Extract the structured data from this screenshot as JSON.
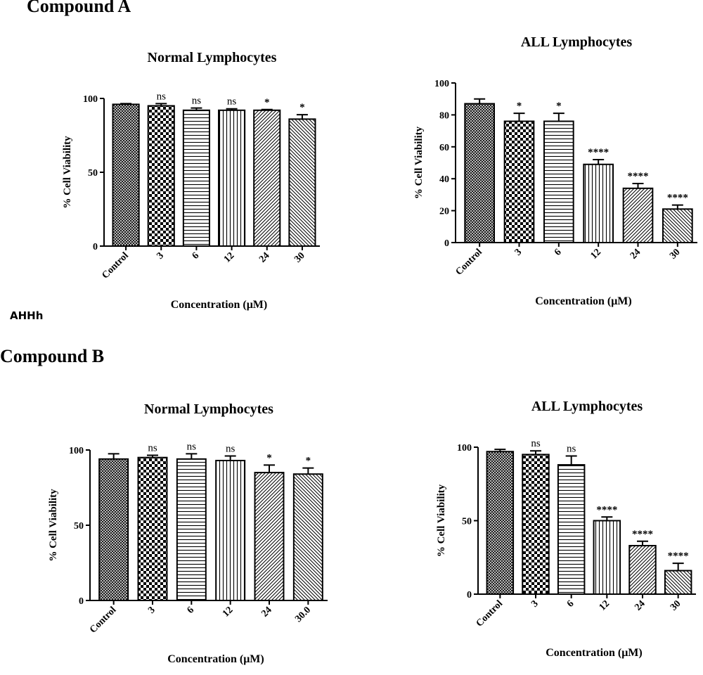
{
  "page": {
    "compound_a_label": "Compound A",
    "compound_b_label": "Compound B",
    "stray_label": "AHHh"
  },
  "chart_data": [
    {
      "type": "bar",
      "title": "Normal Lymphocytes",
      "xlabel": "Concentration (μM)",
      "ylabel": "% Cell Viability",
      "categories": [
        "Control",
        "3",
        "6",
        "12",
        "24",
        "30"
      ],
      "values": [
        96,
        95,
        92,
        92,
        92,
        86
      ],
      "errors": [
        0.5,
        1.5,
        1.5,
        1,
        0.5,
        3
      ],
      "significance": [
        "",
        "ns",
        "ns",
        "ns",
        "*",
        "*"
      ],
      "ylim": [
        0,
        100
      ],
      "yticks": [
        0,
        50,
        100
      ],
      "patterns": [
        "crosshatch",
        "checker",
        "horizontal",
        "vertical",
        "diag-right",
        "diag-left"
      ]
    },
    {
      "type": "bar",
      "title": "ALL Lymphocytes",
      "xlabel": "Concentration (μM)",
      "ylabel": "% Cell Viability",
      "categories": [
        "Control",
        "3",
        "6",
        "12",
        "24",
        "30"
      ],
      "values": [
        87,
        76,
        76,
        49,
        34,
        21
      ],
      "errors": [
        3,
        5,
        5,
        3,
        3,
        2.5
      ],
      "significance": [
        "",
        "*",
        "*",
        "****",
        "****",
        "****"
      ],
      "ylim": [
        0,
        100
      ],
      "yticks": [
        0,
        20,
        40,
        60,
        80,
        100
      ],
      "patterns": [
        "crosshatch",
        "checker",
        "horizontal",
        "vertical",
        "diag-right",
        "diag-left"
      ]
    },
    {
      "type": "bar",
      "title": "Normal Lymphocytes",
      "xlabel": "Concentration (μM)",
      "ylabel": "% Cell Viability",
      "categories": [
        "Control",
        "3",
        "6",
        "12",
        "24",
        "30.0"
      ],
      "values": [
        94,
        95,
        94,
        93,
        85,
        84
      ],
      "errors": [
        3.5,
        1.5,
        3.5,
        3,
        5,
        4
      ],
      "significance": [
        "",
        "ns",
        "ns",
        "ns",
        "*",
        "*"
      ],
      "ylim": [
        0,
        100
      ],
      "yticks": [
        0,
        50,
        100
      ],
      "patterns": [
        "crosshatch",
        "checker",
        "horizontal",
        "vertical",
        "diag-right",
        "diag-left"
      ]
    },
    {
      "type": "bar",
      "title": "ALL Lymphocytes",
      "xlabel": "Concentration (μM)",
      "ylabel": "% Cell Viability",
      "categories": [
        "Control",
        "3",
        "6",
        "12",
        "24",
        "30"
      ],
      "values": [
        97,
        95,
        88,
        50,
        33,
        16
      ],
      "errors": [
        1.5,
        2.5,
        6,
        2.5,
        3,
        5
      ],
      "significance": [
        "",
        "ns",
        "ns",
        "****",
        "****",
        "****"
      ],
      "ylim": [
        0,
        100
      ],
      "yticks": [
        0,
        50,
        100
      ],
      "patterns": [
        "crosshatch",
        "checker",
        "horizontal",
        "vertical",
        "diag-right",
        "diag-left"
      ]
    }
  ]
}
